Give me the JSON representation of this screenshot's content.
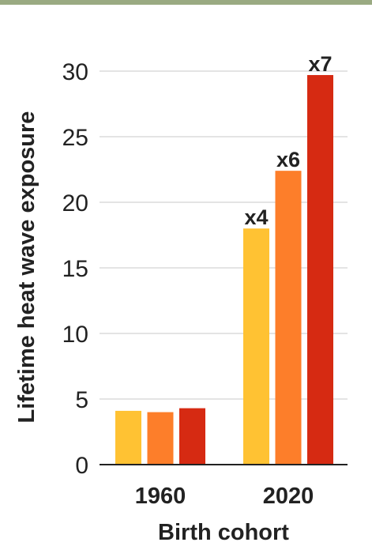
{
  "chart_data": {
    "type": "bar",
    "title": "",
    "xlabel": "Birth cohort",
    "ylabel": "Lifetime heat wave exposure",
    "categories": [
      "1960",
      "2020"
    ],
    "ylim": [
      0,
      30
    ],
    "yticks": [
      0,
      5,
      10,
      15,
      20,
      25,
      30
    ],
    "grid": true,
    "legend": "none",
    "series": [
      {
        "values": [
          4.1,
          18.0
        ],
        "color": "#ffc233",
        "labels": [
          "",
          "x4"
        ]
      },
      {
        "values": [
          4.0,
          22.4
        ],
        "color": "#fd7e2a",
        "labels": [
          "",
          "x6"
        ]
      },
      {
        "values": [
          4.3,
          29.7
        ],
        "color": "#d62a12",
        "labels": [
          "",
          "x7"
        ]
      }
    ]
  }
}
